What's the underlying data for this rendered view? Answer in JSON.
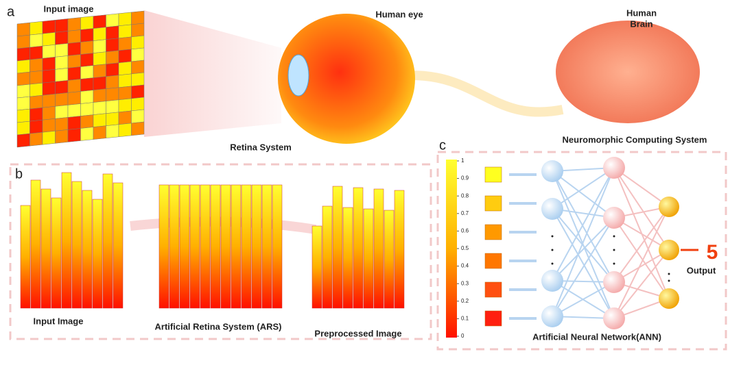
{
  "panel_a": {
    "letter": "a",
    "input_label": "Input image",
    "eye_label": "Human eye",
    "brain_label": [
      "Human",
      "Brain"
    ],
    "retina_label": "Retina System",
    "neuro_label": "Neuromorphic Computing System"
  },
  "panel_b": {
    "letter": "b",
    "labels": [
      "Input Image",
      "Artificial Retina System (ARS)",
      "Preprocessed Image"
    ]
  },
  "panel_c": {
    "letter": "c",
    "colorbar_ticks": [
      1,
      0.9,
      0.8,
      0.7,
      0.6,
      0.5,
      0.4,
      0.3,
      0.2,
      0.1,
      0
    ],
    "output_value": "5",
    "output_label": "Output",
    "network_label": "Artificial Neural Network(ANN)"
  }
}
